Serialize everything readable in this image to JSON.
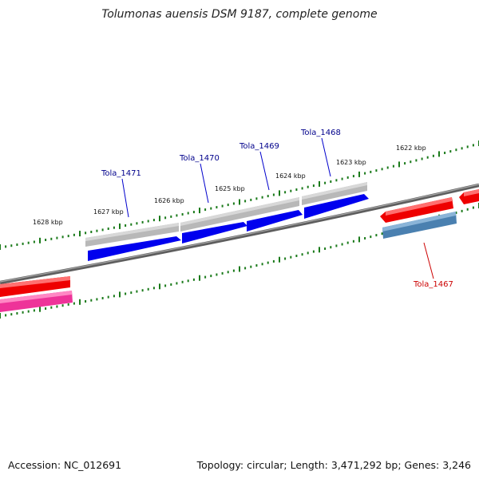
{
  "title": "Tolumonas auensis DSM 9187, complete genome",
  "footer": {
    "accession": "Accession: NC_012691",
    "summary": "Topology: circular; Length: 3,471,292 bp; Genes: 3,246"
  },
  "colors": {
    "backbone": "#7a7a7a",
    "ticks": "#1a7a1a",
    "forward_gene": "#0000ee",
    "forward_gene_gray": "#b8b8b8",
    "reverse_gene": "#ee0000",
    "reverse_gene_pink": "#ee3399",
    "reverse_gene_steel": "#4a80b0",
    "label_forward": "#00008b",
    "label_reverse": "#cc0000"
  },
  "scale_labels": [
    "1628 kbp",
    "1627 kbp",
    "1626 kbp",
    "1625 kbp",
    "1624 kbp",
    "1623 kbp",
    "1622 kbp"
  ],
  "gene_labels": [
    {
      "name": "Tola_1471",
      "strand": "forward"
    },
    {
      "name": "Tola_1470",
      "strand": "forward"
    },
    {
      "name": "Tola_1469",
      "strand": "forward"
    },
    {
      "name": "Tola_1468",
      "strand": "forward"
    },
    {
      "name": "Tola_1467",
      "strand": "reverse"
    }
  ]
}
